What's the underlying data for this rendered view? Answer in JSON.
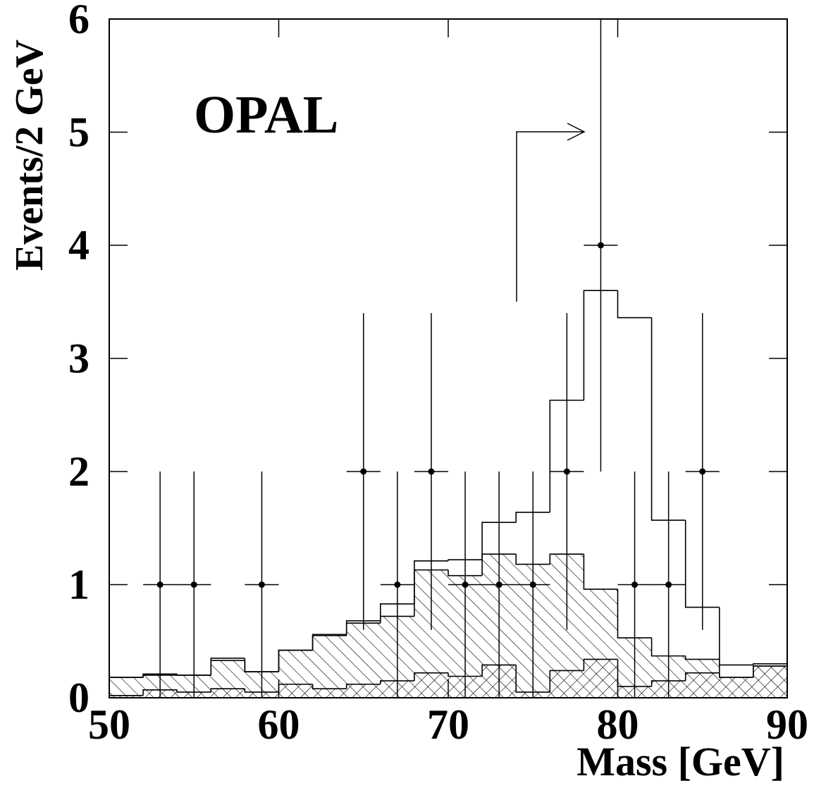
{
  "chart_data": {
    "type": "histogram",
    "annotation": "OPAL",
    "xlabel": "Mass [GeV]",
    "ylabel": "Events/2 GeV",
    "bins": [
      50,
      52,
      54,
      56,
      58,
      60,
      62,
      64,
      66,
      68,
      70,
      72,
      74,
      76,
      78,
      80,
      82,
      84,
      86,
      88,
      90
    ],
    "series": [
      {
        "values": [
          0.18,
          0.21,
          0.2,
          0.35,
          0.23,
          0.42,
          0.56,
          0.68,
          0.83,
          1.21,
          1.22,
          1.55,
          1.64,
          2.63,
          3.6,
          3.36,
          1.57,
          0.8,
          0.29,
          0.3
        ],
        "color": "#000000",
        "fill": "none"
      },
      {
        "values": [
          0.18,
          0.2,
          0.2,
          0.33,
          0.23,
          0.42,
          0.55,
          0.66,
          0.72,
          1.13,
          1.08,
          1.27,
          1.18,
          1.27,
          0.96,
          0.53,
          0.37,
          0.34,
          0.18,
          0.28
        ],
        "color": "#000000",
        "fill": "hatch"
      },
      {
        "values": [
          0.02,
          0.07,
          0.05,
          0.08,
          0.05,
          0.12,
          0.08,
          0.12,
          0.15,
          0.22,
          0.19,
          0.29,
          0.05,
          0.24,
          0.34,
          0.1,
          0.15,
          0.22,
          0.18,
          0.28
        ],
        "color": "#000000",
        "fill": "crosshatch"
      }
    ],
    "points": {
      "x": [
        53,
        55,
        59,
        65,
        67,
        69,
        71,
        73,
        75,
        77,
        79,
        81,
        83,
        85
      ],
      "values": [
        1,
        1,
        1,
        2,
        1,
        2,
        1,
        1,
        1,
        2,
        4,
        1,
        1,
        2
      ],
      "xerr": 1,
      "yerr_low": [
        1,
        1,
        1,
        1.4,
        1,
        1.4,
        1,
        1,
        1,
        1.4,
        2,
        1,
        1,
        1.4
      ],
      "yerr_high": [
        1,
        1,
        1,
        1.4,
        1,
        1.4,
        1,
        1,
        1,
        1.4,
        2.2,
        1,
        1,
        1.4
      ]
    },
    "xlim": [
      50,
      90
    ],
    "xticks": [
      50,
      60,
      70,
      80,
      90
    ],
    "ylim": [
      0,
      6
    ],
    "yticks": [
      0,
      1,
      2,
      3,
      4,
      5,
      6
    ]
  }
}
